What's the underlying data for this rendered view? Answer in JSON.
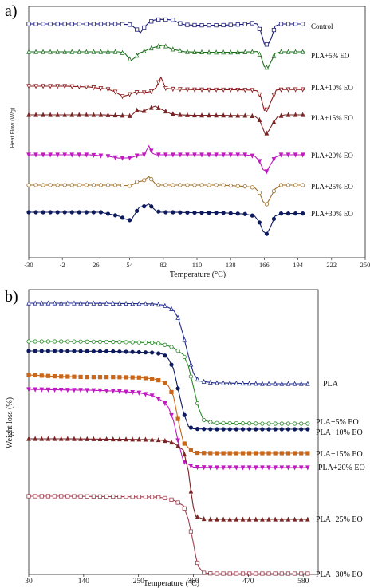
{
  "panel_a_label": "a)",
  "panel_b_label": "b)",
  "chart_data": [
    {
      "type": "line",
      "title": "",
      "xlabel": "Temperature (°C)",
      "ylabel": "Heat Flow (W/g)",
      "xlim": [
        -30,
        250
      ],
      "x_ticks": [
        "-30",
        "-2",
        "26",
        "54",
        "82",
        "110",
        "138",
        "166",
        "194",
        "222",
        "250"
      ],
      "grid": false,
      "legend": "labels at right end of each curve",
      "series": [
        {
          "name": "Control",
          "color": "#1f1f7a",
          "marker": "square",
          "x": [
            -30,
            0,
            30,
            45,
            55,
            60,
            63,
            66,
            70,
            75,
            80,
            90,
            95,
            100,
            110,
            130,
            150,
            155,
            160,
            163,
            166,
            169,
            172,
            175,
            180,
            190,
            200
          ],
          "y": [
            0,
            0,
            0,
            0,
            -0.3,
            -2.2,
            -3.4,
            -1.4,
            0.6,
            1.6,
            1.8,
            1.6,
            0.4,
            -0.3,
            -0.5,
            -0.5,
            -0.1,
            0.4,
            0,
            -3,
            -7.8,
            -8.2,
            -5.5,
            -0.8,
            0,
            0,
            0
          ]
        },
        {
          "name": "PLA+5% EO",
          "color": "#1a6e1a",
          "marker": "triangle-up",
          "x": [
            -30,
            0,
            30,
            45,
            50,
            55,
            58,
            62,
            66,
            70,
            76,
            82,
            90,
            100,
            120,
            140,
            155,
            160,
            163,
            166,
            169,
            172,
            175,
            180,
            190,
            200
          ],
          "y": [
            0,
            0,
            0,
            0,
            -0.6,
            -3.4,
            -2.4,
            -0.5,
            0.2,
            1.1,
            2,
            2.6,
            1,
            0,
            -0.2,
            -0.2,
            0,
            0.1,
            -1.5,
            -5.8,
            -6.3,
            -3.5,
            -0.6,
            0,
            0,
            0
          ]
        },
        {
          "name": "PLA+10% EO",
          "color": "#8b1a1a",
          "marker": "triangle-down",
          "x": [
            -30,
            0,
            20,
            35,
            42,
            48,
            52,
            58,
            66,
            72,
            76,
            80,
            84,
            90,
            100,
            120,
            140,
            155,
            160,
            163,
            166,
            169,
            172,
            176,
            182,
            190,
            200
          ],
          "y": [
            0,
            0,
            -0.3,
            -1.1,
            -2.2,
            -4,
            -3.6,
            -2.4,
            -2.5,
            -2.1,
            -0.5,
            3.5,
            -0.8,
            -1.1,
            -1.3,
            -1.4,
            -1.4,
            -1.5,
            -1.8,
            -4,
            -9.5,
            -9,
            -5.5,
            -1.5,
            -1.3,
            -1.3,
            -1.3
          ]
        },
        {
          "name": "PLA+15% EO",
          "color": "#7a2525",
          "marker": "triangle-up-filled",
          "x": [
            -30,
            0,
            30,
            45,
            55,
            60,
            65,
            70,
            75,
            80,
            88,
            95,
            110,
            130,
            150,
            158,
            162,
            165,
            167,
            170,
            173,
            177,
            183,
            190,
            200
          ],
          "y": [
            0,
            0,
            0,
            -0.2,
            -0.4,
            1.8,
            1.4,
            2.4,
            3.4,
            2.3,
            0.5,
            0,
            -0.2,
            -0.2,
            -0.3,
            -0.5,
            -2,
            -5.5,
            -7.8,
            -6,
            -3.5,
            -0.7,
            0,
            0,
            0
          ]
        },
        {
          "name": "PLA+20% EO",
          "color": "#c01bc0",
          "marker": "triangle-down-filled",
          "x": [
            -30,
            0,
            20,
            35,
            45,
            55,
            62,
            66,
            70,
            73,
            76,
            80,
            90,
            110,
            130,
            150,
            158,
            162,
            165,
            168,
            171,
            175,
            180,
            190,
            200
          ],
          "y": [
            0,
            0,
            0,
            -0.5,
            -1.3,
            -1.2,
            0,
            0,
            3.5,
            0.6,
            0,
            0,
            0,
            0,
            0,
            0,
            -0.5,
            -2.5,
            -5.8,
            -6.5,
            -4,
            -1,
            0,
            0,
            0
          ]
        },
        {
          "name": "PLA+25% EO",
          "color": "#a0702a",
          "marker": "circle",
          "x": [
            -30,
            0,
            30,
            45,
            55,
            60,
            65,
            70,
            73,
            76,
            80,
            90,
            110,
            130,
            150,
            158,
            162,
            165,
            168,
            171,
            175,
            180,
            190,
            200
          ],
          "y": [
            0,
            0,
            0,
            0,
            -0.3,
            1.3,
            1.6,
            3.3,
            1.8,
            0.2,
            0,
            0,
            0,
            0,
            -0.5,
            -1,
            -3,
            -6.5,
            -7.5,
            -5,
            -1.5,
            0,
            0,
            0
          ]
        },
        {
          "name": "PLA+30% EO",
          "color": "#0d1a5e",
          "marker": "circle-filled",
          "x": [
            -30,
            0,
            30,
            45,
            50,
            55,
            58,
            62,
            66,
            70,
            73,
            76,
            80,
            90,
            110,
            130,
            150,
            158,
            162,
            165,
            168,
            171,
            175,
            180,
            190,
            200
          ],
          "y": [
            0,
            0,
            0,
            -1.5,
            -2.6,
            -3.2,
            -1,
            2,
            2.3,
            3.2,
            1.8,
            0.5,
            0,
            0,
            -0.2,
            -0.2,
            -0.7,
            -1.5,
            -4,
            -7.5,
            -8.5,
            -6,
            -1.5,
            -0.5,
            -0.5,
            -0.5
          ]
        }
      ]
    },
    {
      "type": "line",
      "title": "",
      "xlabel": "Temperature (°C)",
      "ylabel": "Weight loss (%)",
      "xlim": [
        30,
        610
      ],
      "x_ticks": [
        "30",
        "140",
        "250",
        "360",
        "470",
        "580"
      ],
      "grid": false,
      "legend": "labels at right end of each curve",
      "series": [
        {
          "name": "PLA",
          "color": "#1f2a8a",
          "marker": "triangle-up",
          "x": [
            30,
            100,
            200,
            280,
            300,
            320,
            330,
            340,
            350,
            360,
            370,
            400,
            500,
            590
          ],
          "y": [
            100,
            100,
            99.8,
            99.3,
            98,
            93,
            84,
            66,
            45,
            27,
            19,
            17,
            16,
            16
          ]
        },
        {
          "name": "PLA+5% EO",
          "color": "#2a8a2a",
          "marker": "circle",
          "x": [
            30,
            100,
            200,
            280,
            300,
            320,
            340,
            350,
            360,
            370,
            380,
            400,
            500,
            590
          ],
          "y": [
            100,
            100,
            99.5,
            98.5,
            96.5,
            92.5,
            84,
            70,
            45,
            20,
            5,
            1.3,
            0.5,
            0.5
          ]
        },
        {
          "name": "PLA+10% EO",
          "color": "#0d1a5e",
          "marker": "circle-filled",
          "x": [
            30,
            100,
            200,
            280,
            300,
            310,
            320,
            330,
            340,
            350,
            360,
            400,
            500,
            590
          ],
          "y": [
            100,
            100,
            99.5,
            98,
            96,
            90,
            78,
            50,
            23,
            5,
            2,
            1.5,
            1.5,
            1.5
          ]
        },
        {
          "name": "PLA+15% EO",
          "color": "#c8661a",
          "marker": "square-filled",
          "x": [
            30,
            80,
            150,
            200,
            250,
            280,
            300,
            310,
            320,
            330,
            340,
            360,
            400,
            500,
            590
          ],
          "y": [
            100,
            98.5,
            97.5,
            97.5,
            97,
            95.5,
            92,
            87,
            75,
            45,
            20,
            8,
            7.5,
            7.5,
            7.5
          ]
        },
        {
          "name": "PLA+20% EO",
          "color": "#c01bc0",
          "marker": "triangle-down-filled",
          "x": [
            30,
            80,
            150,
            200,
            250,
            280,
            300,
            310,
            320,
            330,
            340,
            360,
            400,
            500,
            590
          ],
          "y": [
            100,
            99.5,
            99,
            98,
            96,
            92,
            85,
            78,
            62,
            35,
            12,
            5,
            4.5,
            4.5,
            4.5
          ]
        },
        {
          "name": "PLA+25% EO",
          "color": "#7a2525",
          "marker": "triangle-up-filled",
          "x": [
            30,
            100,
            200,
            280,
            300,
            320,
            340,
            350,
            355,
            360,
            365,
            380,
            400,
            500,
            590
          ],
          "y": [
            100,
            100,
            99.5,
            99,
            98,
            95,
            86,
            60,
            35,
            15,
            4,
            1,
            0.5,
            0.5,
            0.5
          ]
        },
        {
          "name": "PLA+30% EO",
          "color": "#a04050",
          "marker": "square",
          "x": [
            30,
            100,
            200,
            280,
            300,
            320,
            340,
            350,
            360,
            365,
            370,
            380,
            400,
            500,
            590
          ],
          "y": [
            100,
            100,
            99.5,
            99,
            98,
            95,
            88,
            70,
            40,
            22,
            10,
            2,
            1,
            1,
            1
          ]
        }
      ]
    }
  ]
}
